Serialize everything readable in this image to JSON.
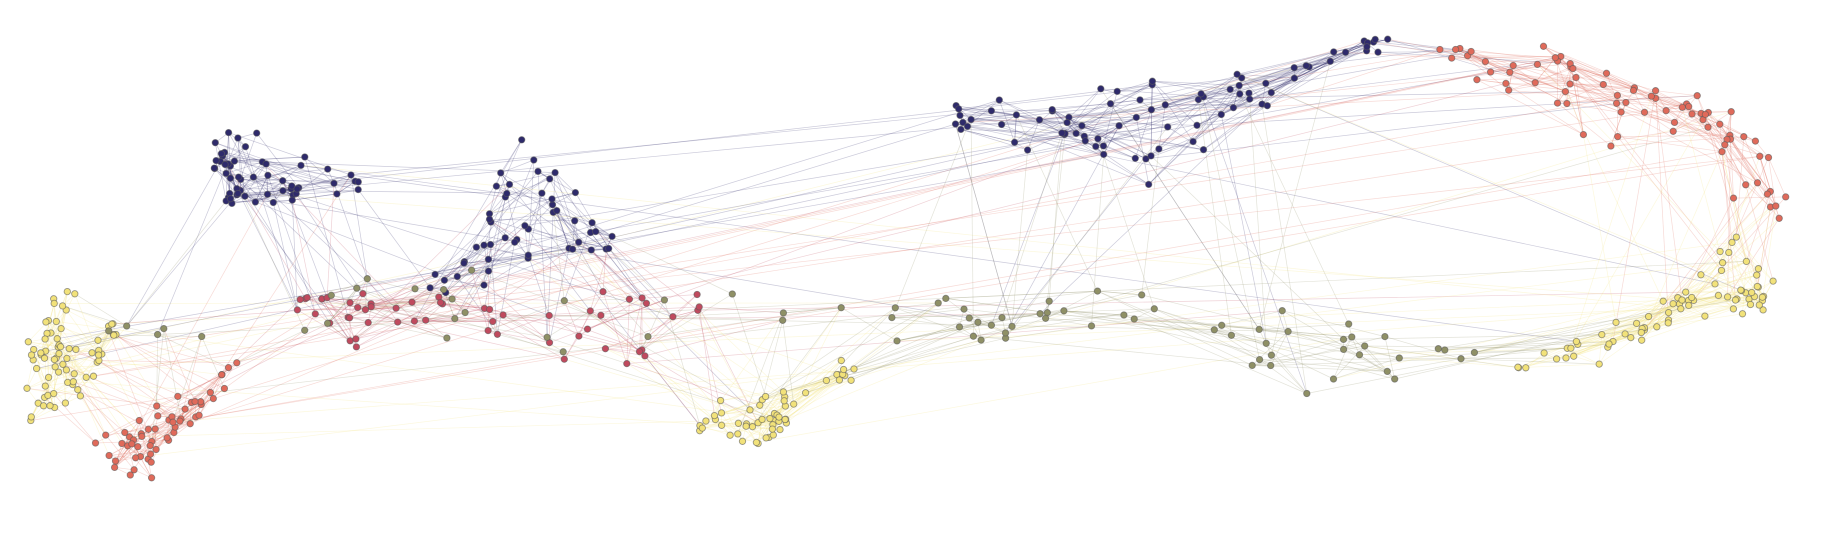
{
  "diagram": {
    "type": "force-directed network graph",
    "background": "#ffffff",
    "title": "",
    "labels_visible": false,
    "palette": {
      "navy": "#2e2a6b",
      "purple": "#5e3a78",
      "plum": "#8a3d6a",
      "rose": "#c04a5e",
      "coral": "#e06a5a",
      "orange": "#ee9a5c",
      "yellow": "#f2e27a",
      "olive": "#8f9066",
      "gray": "#7b7a72"
    },
    "node_outline": "#5a5a5a",
    "edge_opacity": 0.25,
    "clusters": [
      {
        "id": "left-loop",
        "color": "yellow"
      },
      {
        "id": "left-hub",
        "color": "coral"
      },
      {
        "id": "upper-left-knot",
        "color": "navy"
      },
      {
        "id": "mid-knot",
        "color": "navy"
      },
      {
        "id": "center-bridge",
        "color": "rose"
      },
      {
        "id": "center-loop",
        "color": "yellow"
      },
      {
        "id": "top-ridge",
        "color": "navy"
      },
      {
        "id": "right-arc",
        "color": "coral"
      },
      {
        "id": "right-loop",
        "color": "yellow"
      },
      {
        "id": "lower-band",
        "color": "olive"
      }
    ]
  }
}
